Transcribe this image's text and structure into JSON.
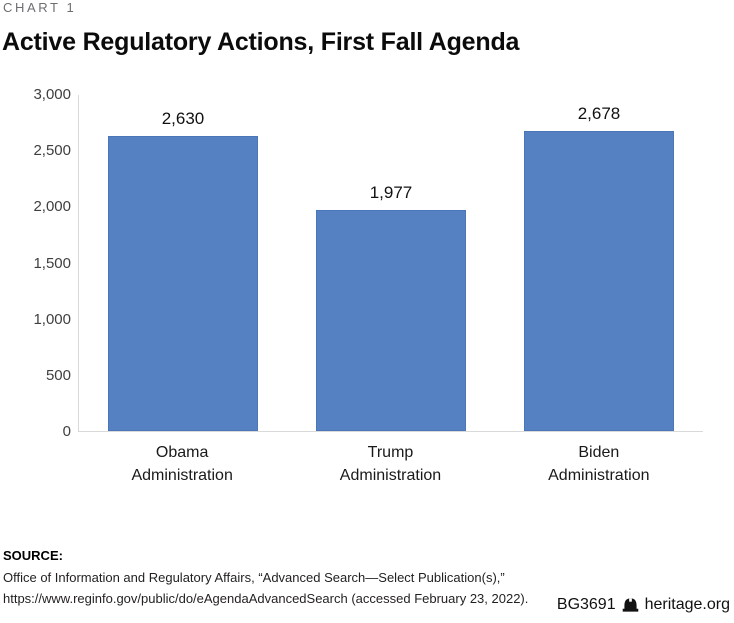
{
  "kicker": "CHART 1",
  "title": "Active Regulatory Actions, First Fall Agenda",
  "chart_data": {
    "type": "bar",
    "categories": [
      "Obama\nAdministration",
      "Trump\nAdministration",
      "Biden\nAdministration"
    ],
    "values": [
      2630,
      1977,
      2678
    ],
    "value_labels": [
      "2,630",
      "1,977",
      "2,678"
    ],
    "title": "Active Regulatory Actions, First Fall Agenda",
    "xlabel": "",
    "ylabel": "",
    "ylim": [
      0,
      3000
    ],
    "ytick_values": [
      3000,
      2500,
      2000,
      1500,
      1000,
      500,
      0
    ],
    "ytick_labels": [
      "3,000",
      "2,500",
      "2,000",
      "1,500",
      "1,000",
      "500",
      "0"
    ],
    "grid": "off",
    "legend": "none",
    "bar_fill_color": "#5580c1",
    "bar_border_color": "#4a76ba",
    "axis_line_color": "#d9d9d9"
  },
  "footer": {
    "source_label": "SOURCE:",
    "source_text": "Office of Information and Regulatory Affairs, “Advanced Search—Select Publication(s),”\nhttps://www.reginfo.gov/public/do/eAgendaAdvancedSearch (accessed February 23, 2022).",
    "brand_id": "BG3691",
    "brand_site": "heritage.org",
    "brand_icon": "liberty-bell-icon"
  }
}
